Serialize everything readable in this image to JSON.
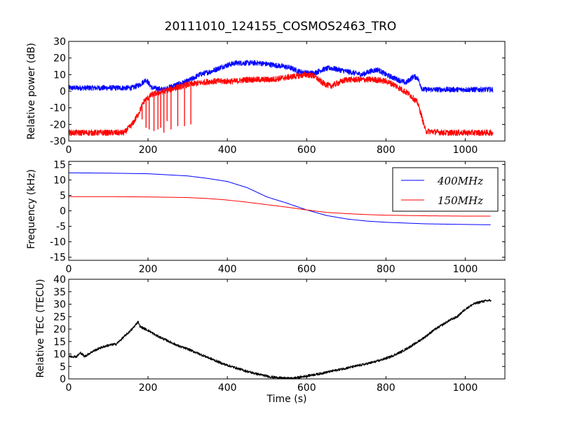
{
  "title": "20111010_124155_COSMOS2463_TRO",
  "xlabel": "Time (s)",
  "chart_data": [
    {
      "type": "line",
      "ylabel": "Relative power (dB)",
      "xlim": [
        0,
        1100
      ],
      "ylim": [
        -30,
        30
      ],
      "xticks": [
        0,
        200,
        400,
        600,
        800,
        1000
      ],
      "yticks": [
        -30,
        -20,
        -10,
        0,
        10,
        20,
        30
      ],
      "series": [
        {
          "color": "#0000ff",
          "noise": 1.6,
          "points": [
            [
              0,
              2
            ],
            [
              100,
              2
            ],
            [
              160,
              2
            ],
            [
              180,
              4
            ],
            [
              195,
              7
            ],
            [
              210,
              2
            ],
            [
              240,
              1
            ],
            [
              260,
              3
            ],
            [
              300,
              6
            ],
            [
              330,
              10
            ],
            [
              360,
              12
            ],
            [
              390,
              15
            ],
            [
              420,
              17
            ],
            [
              450,
              17
            ],
            [
              480,
              17
            ],
            [
              510,
              16
            ],
            [
              540,
              15
            ],
            [
              560,
              14
            ],
            [
              580,
              12
            ],
            [
              600,
              11
            ],
            [
              620,
              11
            ],
            [
              640,
              13
            ],
            [
              660,
              14
            ],
            [
              680,
              13
            ],
            [
              700,
              12
            ],
            [
              720,
              11
            ],
            [
              740,
              10
            ],
            [
              760,
              12
            ],
            [
              780,
              13
            ],
            [
              800,
              10
            ],
            [
              820,
              8
            ],
            [
              850,
              5
            ],
            [
              870,
              9
            ],
            [
              880,
              8
            ],
            [
              892,
              1
            ],
            [
              900,
              1
            ],
            [
              1000,
              1
            ],
            [
              1070,
              1
            ]
          ]
        },
        {
          "color": "#ff0000",
          "noise": 1.8,
          "points": [
            [
              0,
              -25
            ],
            [
              100,
              -25
            ],
            [
              140,
              -25
            ],
            [
              160,
              -20
            ],
            [
              175,
              -14
            ],
            [
              190,
              -6
            ],
            [
              210,
              -2
            ],
            [
              240,
              0
            ],
            [
              270,
              2
            ],
            [
              300,
              4
            ],
            [
              330,
              5
            ],
            [
              360,
              6
            ],
            [
              390,
              6
            ],
            [
              420,
              6
            ],
            [
              450,
              7
            ],
            [
              480,
              7
            ],
            [
              510,
              7
            ],
            [
              540,
              8
            ],
            [
              570,
              9
            ],
            [
              600,
              10
            ],
            [
              620,
              9
            ],
            [
              640,
              5
            ],
            [
              660,
              3
            ],
            [
              680,
              5
            ],
            [
              700,
              7
            ],
            [
              720,
              7
            ],
            [
              740,
              7
            ],
            [
              770,
              7
            ],
            [
              800,
              6
            ],
            [
              820,
              4
            ],
            [
              840,
              1
            ],
            [
              860,
              -2
            ],
            [
              880,
              -7
            ],
            [
              890,
              -15
            ],
            [
              900,
              -24
            ],
            [
              950,
              -25
            ],
            [
              1070,
              -25
            ]
          ],
          "spikes": [
            [
              185,
              -17
            ],
            [
              195,
              -22
            ],
            [
              203,
              -23
            ],
            [
              215,
              -24
            ],
            [
              225,
              -23
            ],
            [
              232,
              -22
            ],
            [
              240,
              -25
            ],
            [
              248,
              -18
            ],
            [
              258,
              -23
            ],
            [
              275,
              -21
            ],
            [
              292,
              -21
            ],
            [
              308,
              -20
            ]
          ]
        }
      ]
    },
    {
      "type": "line",
      "ylabel": "Frequency (kHz)",
      "xlim": [
        0,
        1100
      ],
      "ylim": [
        -16,
        16
      ],
      "xticks": [
        0,
        200,
        400,
        600,
        800,
        1000
      ],
      "yticks": [
        -15,
        -10,
        -5,
        0,
        5,
        10,
        15
      ],
      "legend": "top-right",
      "series": [
        {
          "name": "400MHz",
          "color": "#0000ff",
          "points": [
            [
              0,
              12.3
            ],
            [
              100,
              12.2
            ],
            [
              200,
              12
            ],
            [
              300,
              11.3
            ],
            [
              350,
              10.5
            ],
            [
              400,
              9.5
            ],
            [
              450,
              7.5
            ],
            [
              500,
              4.5
            ],
            [
              550,
              2.5
            ],
            [
              600,
              0.3
            ],
            [
              650,
              -1.5
            ],
            [
              700,
              -2.6
            ],
            [
              750,
              -3.3
            ],
            [
              800,
              -3.7
            ],
            [
              900,
              -4.2
            ],
            [
              1000,
              -4.4
            ],
            [
              1065,
              -4.5
            ]
          ]
        },
        {
          "name": "150MHz",
          "color": "#ff0000",
          "points": [
            [
              0,
              4.6
            ],
            [
              100,
              4.6
            ],
            [
              200,
              4.5
            ],
            [
              300,
              4.3
            ],
            [
              350,
              4
            ],
            [
              400,
              3.5
            ],
            [
              450,
              2.8
            ],
            [
              500,
              2
            ],
            [
              550,
              1.2
            ],
            [
              600,
              0.3
            ],
            [
              650,
              -0.5
            ],
            [
              700,
              -0.9
            ],
            [
              750,
              -1.2
            ],
            [
              800,
              -1.4
            ],
            [
              900,
              -1.6
            ],
            [
              1000,
              -1.7
            ],
            [
              1065,
              -1.7
            ]
          ]
        }
      ]
    },
    {
      "type": "line",
      "ylabel": "Relative TEC (TECU)",
      "xlim": [
        0,
        1100
      ],
      "ylim": [
        0,
        40
      ],
      "xticks": [
        0,
        200,
        400,
        600,
        800,
        1000
      ],
      "yticks": [
        0,
        5,
        10,
        15,
        20,
        25,
        30,
        35,
        40
      ],
      "series": [
        {
          "color": "#000000",
          "noise": 0.5,
          "points": [
            [
              0,
              9
            ],
            [
              20,
              9
            ],
            [
              30,
              10.5
            ],
            [
              40,
              9
            ],
            [
              60,
              11
            ],
            [
              80,
              12.5
            ],
            [
              100,
              13.5
            ],
            [
              120,
              14
            ],
            [
              140,
              17
            ],
            [
              160,
              20
            ],
            [
              170,
              22
            ],
            [
              175,
              23
            ],
            [
              180,
              21
            ],
            [
              200,
              19.5
            ],
            [
              220,
              17.5
            ],
            [
              240,
              16
            ],
            [
              260,
              14.5
            ],
            [
              280,
              13
            ],
            [
              300,
              12
            ],
            [
              330,
              10
            ],
            [
              360,
              8
            ],
            [
              390,
              6
            ],
            [
              420,
              4.5
            ],
            [
              450,
              3
            ],
            [
              480,
              1.8
            ],
            [
              510,
              0.8
            ],
            [
              540,
              0.3
            ],
            [
              560,
              0.2
            ],
            [
              580,
              0.6
            ],
            [
              600,
              1.2
            ],
            [
              630,
              2
            ],
            [
              660,
              3
            ],
            [
              690,
              4
            ],
            [
              720,
              5
            ],
            [
              750,
              6
            ],
            [
              780,
              7.2
            ],
            [
              810,
              8.8
            ],
            [
              840,
              11
            ],
            [
              870,
              13.8
            ],
            [
              900,
              17
            ],
            [
              920,
              19.5
            ],
            [
              940,
              21.5
            ],
            [
              960,
              23.5
            ],
            [
              980,
              25
            ],
            [
              1000,
              28
            ],
            [
              1020,
              30
            ],
            [
              1040,
              31
            ],
            [
              1060,
              31.5
            ],
            [
              1065,
              31.5
            ]
          ]
        }
      ]
    }
  ]
}
